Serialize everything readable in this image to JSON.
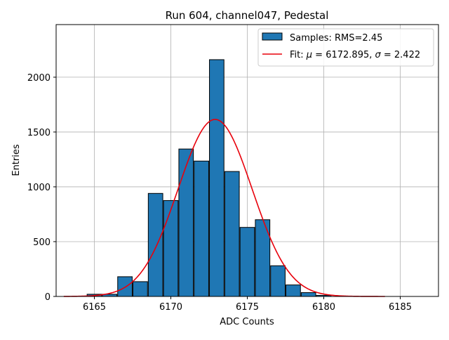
{
  "chart_data": {
    "type": "bar",
    "title": "Run 604, channel047, Pedestal",
    "xlabel": "ADC Counts",
    "ylabel": "Entries",
    "xlim": [
      6162.5,
      6187.5
    ],
    "ylim": [
      0,
      2480
    ],
    "grid": true,
    "legend_position": "top-right",
    "x_ticks": [
      6165,
      6170,
      6175,
      6180,
      6185
    ],
    "y_ticks": [
      0,
      500,
      1000,
      1500,
      2000
    ],
    "histogram": {
      "name": "Samples: RMS=2.45",
      "bin_width": 0.95,
      "bins": [
        {
          "x": 6163.0,
          "count": 0
        },
        {
          "x": 6164.0,
          "count": 0
        },
        {
          "x": 6165.0,
          "count": 20
        },
        {
          "x": 6166.0,
          "count": 20
        },
        {
          "x": 6167.0,
          "count": 180
        },
        {
          "x": 6168.0,
          "count": 135
        },
        {
          "x": 6169.0,
          "count": 940
        },
        {
          "x": 6170.0,
          "count": 875
        },
        {
          "x": 6171.0,
          "count": 1345
        },
        {
          "x": 6172.0,
          "count": 1235
        },
        {
          "x": 6173.0,
          "count": 2160
        },
        {
          "x": 6174.0,
          "count": 1140
        },
        {
          "x": 6175.0,
          "count": 630
        },
        {
          "x": 6176.0,
          "count": 700
        },
        {
          "x": 6177.0,
          "count": 280
        },
        {
          "x": 6178.0,
          "count": 105
        },
        {
          "x": 6179.0,
          "count": 35
        },
        {
          "x": 6180.0,
          "count": 10
        },
        {
          "x": 6181.0,
          "count": 0
        },
        {
          "x": 6182.0,
          "count": 0
        },
        {
          "x": 6183.0,
          "count": 0
        }
      ]
    },
    "fit": {
      "name_prefix": "Fit: ",
      "mu_symbol": "μ",
      "mu_text": " = 6172.895, ",
      "sigma_symbol": "σ",
      "sigma_text": " = 2.422",
      "mu": 6172.895,
      "sigma": 2.422,
      "amplitude": 1615,
      "x_range": [
        6163.0,
        6184.0
      ]
    },
    "colors": {
      "bar_fill": "#1f77b4",
      "bar_edge": "#000000",
      "fit_line": "#e8000b",
      "grid": "#b0b0b0"
    }
  }
}
